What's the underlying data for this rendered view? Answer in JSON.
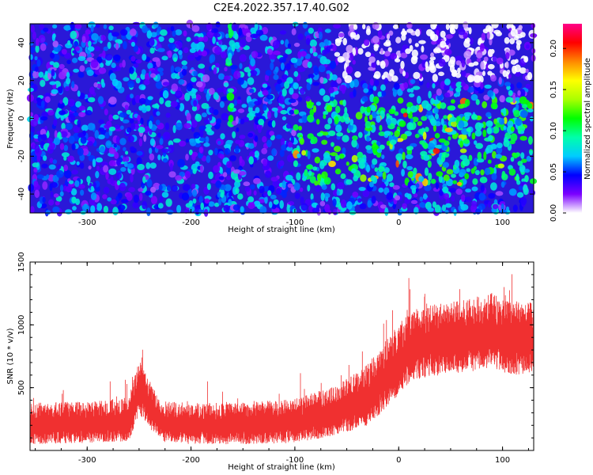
{
  "title": "C2E4.2022.357.17.40.G02",
  "chart_data": [
    {
      "type": "heatmap",
      "xlabel": "Height of straight line (km)",
      "ylabel": "Frequency (Hz)",
      "xlim": [
        -355,
        130
      ],
      "ylim": [
        -50,
        50
      ],
      "xticks": [
        -300,
        -200,
        -100,
        0,
        100
      ],
      "yticks": [
        -40,
        -20,
        0,
        20,
        40
      ],
      "colorbar": {
        "label": "Normalized spectral amplitude",
        "range": [
          0.0,
          0.23
        ],
        "ticks": [
          "0.00",
          "0.05",
          "0.10",
          "0.15",
          "0.20"
        ],
        "colors": [
          "#ffffff",
          "#7b00ff",
          "#0000ff",
          "#00ccff",
          "#00ffaa",
          "#00ff00",
          "#aaff00",
          "#ffff00",
          "#ff8800",
          "#ff0000",
          "#ff0088"
        ]
      },
      "regions": [
        {
          "x": [
            -355,
            -100
          ],
          "y": [
            -50,
            50
          ],
          "level": 0.05
        },
        {
          "x": [
            -100,
            130
          ],
          "y": [
            -35,
            10
          ],
          "level": 0.09
        },
        {
          "x": [
            -60,
            130
          ],
          "y": [
            20,
            50
          ],
          "level": 0.0
        },
        {
          "x": [
            -165,
            -160
          ],
          "y": [
            -15,
            50
          ],
          "level": 0.09
        }
      ]
    },
    {
      "type": "line",
      "xlabel": "Height of straight line (km)",
      "ylabel": "SNR (10 * v/v)",
      "xlim": [
        -355,
        130
      ],
      "ylim": [
        0,
        1500
      ],
      "xticks": [
        -300,
        -200,
        -100,
        0,
        100
      ],
      "yticks": [
        500,
        1000,
        1500
      ],
      "series": [
        {
          "color": "#f03030",
          "x": [
            -355,
            -300,
            -260,
            -250,
            -245,
            -230,
            -200,
            -150,
            -100,
            -60,
            -30,
            -10,
            0,
            10,
            30,
            60,
            90,
            110,
            130
          ],
          "y_center": [
            200,
            210,
            230,
            480,
            420,
            220,
            200,
            200,
            220,
            300,
            420,
            600,
            700,
            800,
            850,
            880,
            920,
            860,
            880
          ],
          "y_spread": [
            150,
            150,
            160,
            200,
            180,
            150,
            150,
            150,
            160,
            180,
            220,
            250,
            260,
            260,
            260,
            260,
            280,
            260,
            260
          ]
        }
      ]
    }
  ]
}
